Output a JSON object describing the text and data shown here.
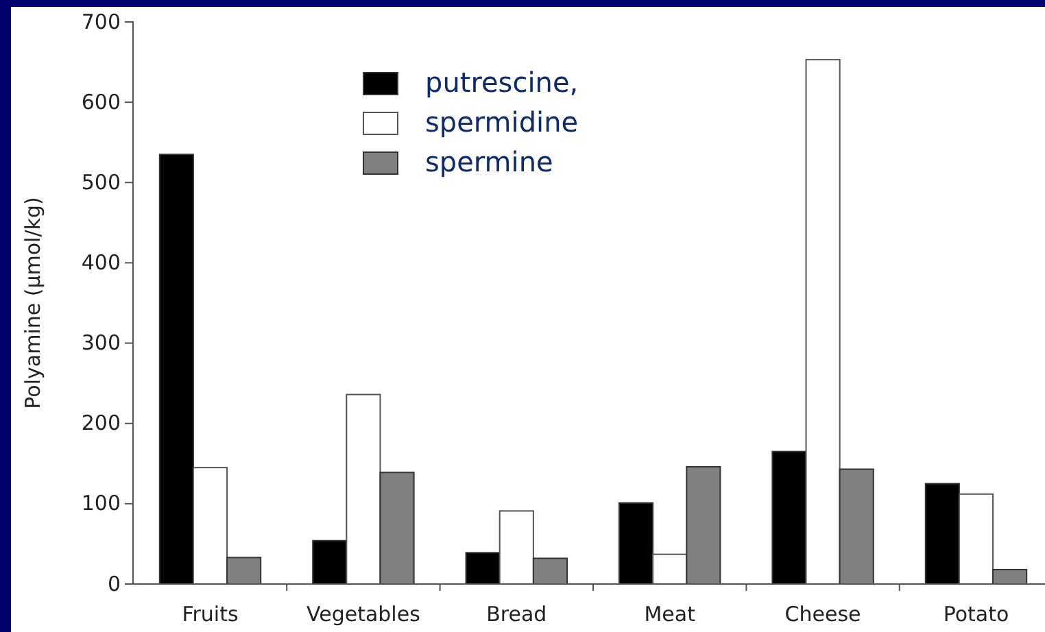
{
  "chart_data": {
    "type": "bar",
    "ylabel": "Polyamine (µmol/kg)",
    "categories": [
      "Fruits",
      "Vegetables",
      "Bread",
      "Meat",
      "Cheese",
      "Potato"
    ],
    "series": [
      {
        "name": "putrescine,",
        "color": "#000000",
        "values": [
          535,
          54,
          39,
          101,
          165,
          125
        ]
      },
      {
        "name": "spermidine",
        "color": "#ffffff",
        "values": [
          145,
          236,
          91,
          37,
          653,
          112
        ]
      },
      {
        "name": "spermine",
        "color": "#808080",
        "values": [
          33,
          139,
          32,
          146,
          143,
          18
        ]
      }
    ],
    "ylim": [
      0,
      700
    ],
    "yticks": [
      0,
      100,
      200,
      300,
      400,
      500,
      600,
      700
    ],
    "grid": false,
    "legend": "top"
  }
}
